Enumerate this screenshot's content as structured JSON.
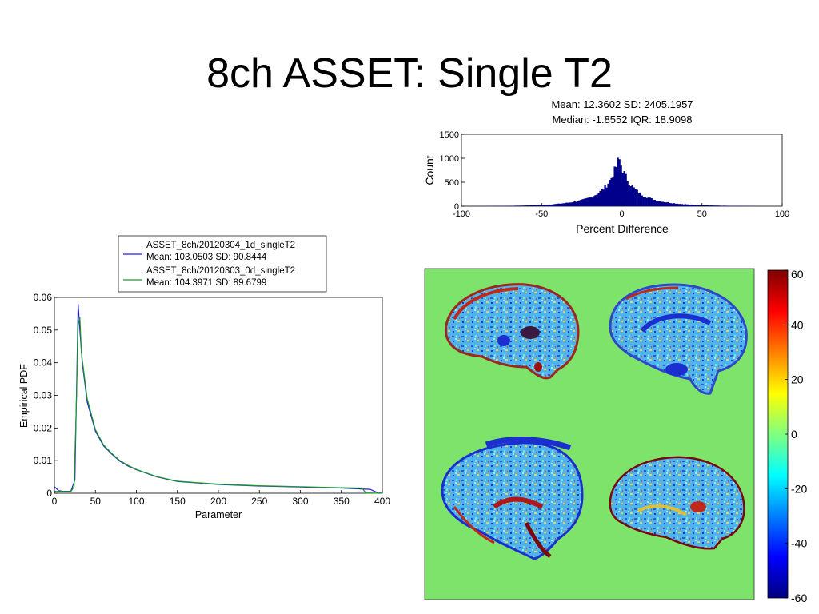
{
  "slide": {
    "title": "8ch ASSET: Single T2"
  },
  "chart_data": [
    {
      "type": "histogram",
      "stats_line1": "Mean: 12.3602 SD: 2405.1957",
      "stats_line2": "Median: -1.8552 IQR: 18.9098",
      "xlabel": "Percent Difference",
      "ylabel": "Count",
      "xlim": [
        -100,
        100
      ],
      "ylim": [
        0,
        1500
      ],
      "xticks": [
        -100,
        -50,
        0,
        50,
        100
      ],
      "yticks": [
        0,
        500,
        1000,
        1500
      ],
      "peak_x": -1.8552,
      "peak_count": 1000,
      "color": "#00008b"
    },
    {
      "type": "line",
      "xlabel": "Parameter",
      "ylabel": "Empirical PDF",
      "xlim": [
        0,
        400
      ],
      "ylim": [
        0,
        0.06
      ],
      "xticks": [
        0,
        50,
        100,
        150,
        200,
        250,
        300,
        350,
        400
      ],
      "yticks": [
        0,
        0.01,
        0.02,
        0.03,
        0.04,
        0.05,
        0.06
      ],
      "legend_position": "top",
      "series": [
        {
          "name": "ASSET_8ch/20120304_1d_singleT2",
          "stats": "Mean: 103.0503 SD: 90.8444",
          "color": "#2020dd",
          "points": [
            [
              0,
              0.002
            ],
            [
              5,
              0.0008
            ],
            [
              10,
              0.0006
            ],
            [
              20,
              0.0006
            ],
            [
              25,
              0.004
            ],
            [
              28,
              0.045
            ],
            [
              29,
              0.058
            ],
            [
              31,
              0.05
            ],
            [
              34,
              0.04
            ],
            [
              40,
              0.028
            ],
            [
              50,
              0.019
            ],
            [
              60,
              0.0145
            ],
            [
              70,
              0.012
            ],
            [
              80,
              0.0098
            ],
            [
              90,
              0.0083
            ],
            [
              100,
              0.0072
            ],
            [
              125,
              0.005
            ],
            [
              150,
              0.0036
            ],
            [
              200,
              0.0027
            ],
            [
              250,
              0.0022
            ],
            [
              300,
              0.0019
            ],
            [
              350,
              0.0016
            ],
            [
              385,
              0.0012
            ],
            [
              395,
              0.0001
            ],
            [
              400,
              0
            ]
          ]
        },
        {
          "name": "ASSET_8ch/20120303_0d_singleT2",
          "stats": "Mean: 104.3971 SD: 89.6799",
          "color": "#1a9a2a",
          "points": [
            [
              0,
              0.0006
            ],
            [
              10,
              0.0005
            ],
            [
              20,
              0.0005
            ],
            [
              24,
              0.002
            ],
            [
              27,
              0.03
            ],
            [
              29,
              0.052
            ],
            [
              31,
              0.054
            ],
            [
              33,
              0.043
            ],
            [
              40,
              0.029
            ],
            [
              50,
              0.0195
            ],
            [
              60,
              0.0148
            ],
            [
              70,
              0.0122
            ],
            [
              80,
              0.01
            ],
            [
              90,
              0.0085
            ],
            [
              100,
              0.0073
            ],
            [
              125,
              0.0051
            ],
            [
              150,
              0.0037
            ],
            [
              200,
              0.0028
            ],
            [
              250,
              0.0023
            ],
            [
              300,
              0.002
            ],
            [
              350,
              0.0017
            ],
            [
              375,
              0.0016
            ],
            [
              380,
              0.0001
            ],
            [
              400,
              0
            ]
          ]
        }
      ]
    },
    {
      "type": "heatmap",
      "colorbar_ticks": [
        60,
        40,
        20,
        0,
        -20,
        -40,
        -60
      ],
      "clim": [
        -60,
        60
      ],
      "background_value": 0
    }
  ]
}
